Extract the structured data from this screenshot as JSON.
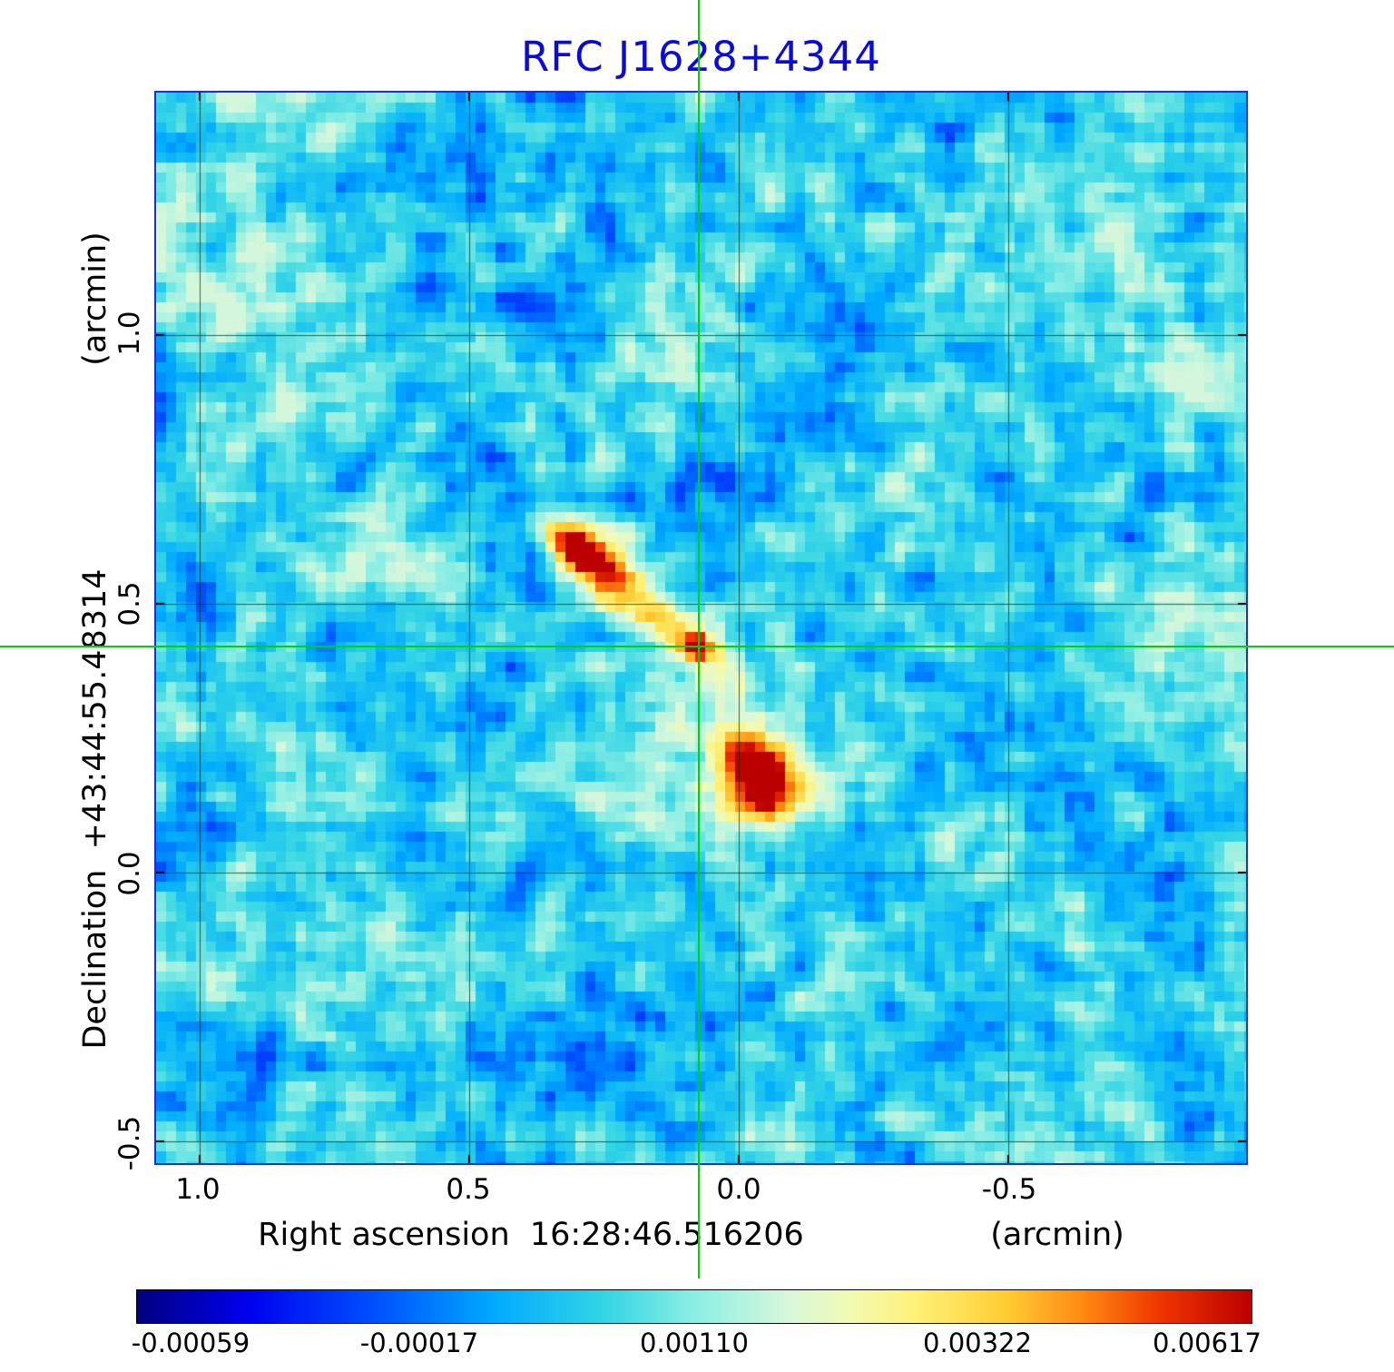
{
  "title": "RFC J1628+4344",
  "axes": {
    "x": {
      "title": "Right ascension  16:28:46.516206",
      "unit": "(arcmin)",
      "ticks": [
        "1.0",
        "0.5",
        "0.0",
        "-0.5"
      ]
    },
    "y": {
      "title": "Declination  +43:44:55.48314",
      "unit": "(arcmin)",
      "ticks": [
        "1.0",
        "0.5",
        "0.0",
        "-0.5"
      ]
    }
  },
  "colorbar": {
    "tick_labels": [
      "-0.00059",
      "-0.00017",
      "0.00110",
      "0.00322",
      "0.00617"
    ]
  },
  "chart_data": {
    "type": "heatmap",
    "title": "RFC J1628+4344",
    "xlabel": "Right ascension 16:28:46.516206 (arcmin)",
    "ylabel": "Declination +43:44:55.48314 (arcmin)",
    "x_range_arcmin": [
      1.08,
      -0.94
    ],
    "y_range_arcmin": [
      1.45,
      -0.54
    ],
    "x_ticks": [
      1.0,
      0.5,
      0.0,
      -0.5
    ],
    "y_ticks": [
      1.0,
      0.5,
      0.0,
      -0.5
    ],
    "colorbar_values": [
      -0.00059,
      -0.00017,
      0.0011,
      0.00322,
      0.00617
    ],
    "crosshair": {
      "ra_arcmin": 0.075,
      "dec_arcmin": 0.42
    },
    "crosshair_color": "#00d400",
    "grid_color": "rgba(20,45,20,0.75)",
    "background": {
      "seed": 1628,
      "base_t": 0.41,
      "coarse_amp": 0.27,
      "fine_amp": 0.3
    },
    "sources": [
      {
        "name": "northeast-lobe",
        "ra_arcmin": 0.3,
        "dec_arcmin": 0.6,
        "amplitude": 0.6,
        "sigma_major_arcmin": 0.055,
        "sigma_minor_arcmin": 0.03,
        "angle_deg": 38
      },
      {
        "name": "northeast-lobe-tail",
        "ra_arcmin": 0.235,
        "dec_arcmin": 0.545,
        "amplitude": 0.26,
        "sigma_major_arcmin": 0.075,
        "sigma_minor_arcmin": 0.035,
        "angle_deg": 38
      },
      {
        "name": "jet-bridge",
        "ra_arcmin": 0.15,
        "dec_arcmin": 0.47,
        "amplitude": 0.1,
        "sigma_major_arcmin": 0.1,
        "sigma_minor_arcmin": 0.04,
        "angle_deg": 42
      },
      {
        "name": "core",
        "ra_arcmin": 0.075,
        "dec_arcmin": 0.42,
        "amplitude": 0.55,
        "sigma_major_arcmin": 0.016,
        "sigma_minor_arcmin": 0.013,
        "angle_deg": 0
      },
      {
        "name": "core-halo",
        "ra_arcmin": 0.075,
        "dec_arcmin": 0.42,
        "amplitude": 0.14,
        "sigma_major_arcmin": 0.036,
        "sigma_minor_arcmin": 0.03,
        "angle_deg": 20
      },
      {
        "name": "southwest-lobe",
        "ra_arcmin": -0.035,
        "dec_arcmin": 0.175,
        "amplitude": 0.62,
        "sigma_major_arcmin": 0.055,
        "sigma_minor_arcmin": 0.045,
        "angle_deg": 55
      },
      {
        "name": "southwest-lobe-halo",
        "ra_arcmin": -0.01,
        "dec_arcmin": 0.24,
        "amplitude": 0.18,
        "sigma_major_arcmin": 0.09,
        "sigma_minor_arcmin": 0.055,
        "angle_deg": 55
      }
    ],
    "colormap": [
      {
        "t": 0.0,
        "color": "#000080"
      },
      {
        "t": 0.1,
        "color": "#0000ee"
      },
      {
        "t": 0.22,
        "color": "#0055ff"
      },
      {
        "t": 0.32,
        "color": "#00aaff"
      },
      {
        "t": 0.42,
        "color": "#33d5e5"
      },
      {
        "t": 0.5,
        "color": "#8ceee4"
      },
      {
        "t": 0.58,
        "color": "#d4f7dc"
      },
      {
        "t": 0.64,
        "color": "#f2fab4"
      },
      {
        "t": 0.7,
        "color": "#fff176"
      },
      {
        "t": 0.78,
        "color": "#ffcc33"
      },
      {
        "t": 0.85,
        "color": "#ff8811"
      },
      {
        "t": 0.92,
        "color": "#ee3300"
      },
      {
        "t": 1.0,
        "color": "#bb0000"
      }
    ]
  }
}
